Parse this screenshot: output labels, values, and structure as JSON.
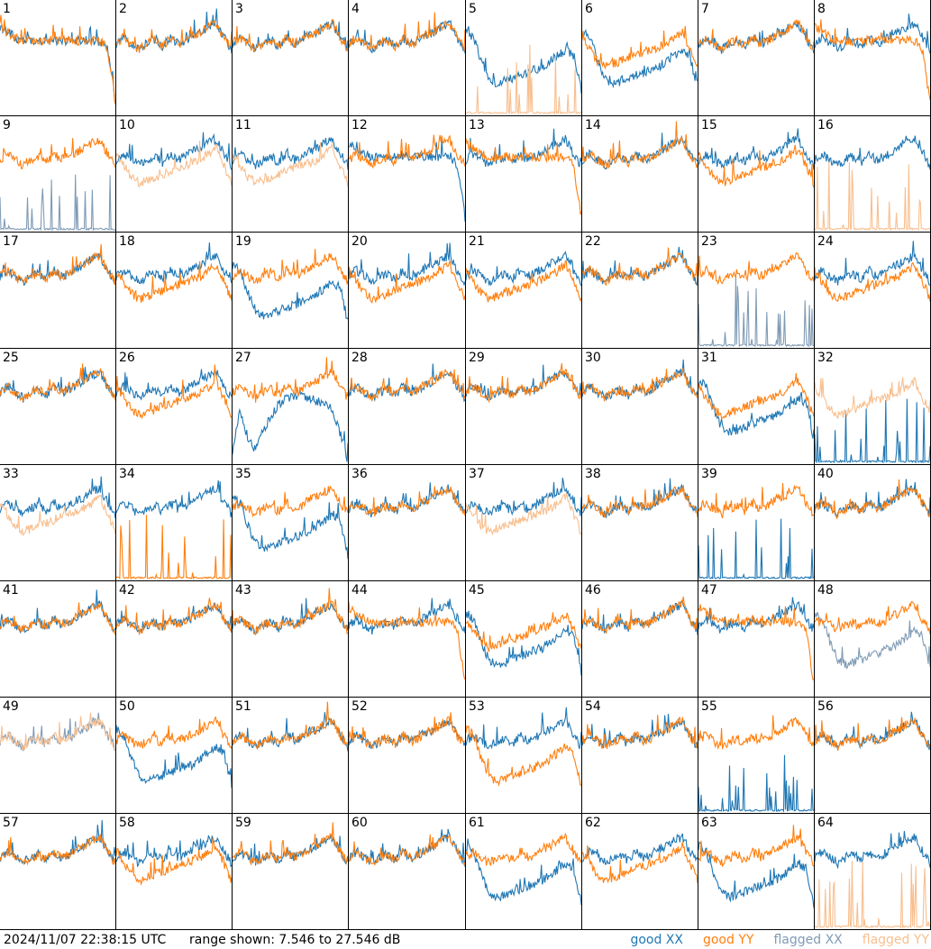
{
  "footer": {
    "timestamp": "2024/11/07 22:38:15 UTC",
    "range": "range shown: 7.546 to 27.546 dB"
  },
  "legend": [
    {
      "label": "good XX",
      "color": "#1f77b4"
    },
    {
      "label": "good YY",
      "color": "#ff7f0e"
    },
    {
      "label": "flagged XX",
      "color": "#7f9bb5"
    },
    {
      "label": "flagged YY",
      "color": "#f8bf8f"
    }
  ],
  "chart_data": {
    "type": "line",
    "grid_cols": 8,
    "grid_rows": 8,
    "ylim": [
      7.546,
      27.546
    ],
    "shapes": {
      "normal": [
        20,
        21,
        20,
        19,
        20,
        20.5,
        19.5,
        21,
        20,
        20.5,
        21.5,
        22,
        23,
        23.5,
        21,
        19
      ],
      "dip": [
        22,
        21,
        17,
        14,
        13,
        13.5,
        14,
        14.5,
        15,
        15.5,
        16,
        17,
        18,
        19,
        18,
        12
      ],
      "flat": [
        23,
        22,
        21,
        20.5,
        20.5,
        20.5,
        20.5,
        20.5,
        20.5,
        20.5,
        20.5,
        20.5,
        20.5,
        20.5,
        19,
        10
      ],
      "low": [
        21,
        19,
        17,
        16,
        16.5,
        17,
        17.5,
        18,
        18.5,
        19,
        19.5,
        20,
        21,
        22,
        19,
        16
      ],
      "spiky": [
        8,
        8,
        14,
        8,
        8,
        8,
        8,
        11,
        8,
        8,
        8,
        8,
        9,
        8,
        8,
        8
      ],
      "recovery": [
        10,
        17,
        12,
        10,
        13,
        16,
        18,
        19,
        19.5,
        19.5,
        19,
        18.5,
        18,
        17,
        13,
        7.8
      ]
    },
    "tiles": [
      {
        "id": "1",
        "xx": "flat",
        "yy": "flat",
        "xx_flagged": false,
        "yy_flagged": false
      },
      {
        "id": "2",
        "xx": "normal",
        "yy": "normal",
        "xx_flagged": false,
        "yy_flagged": false
      },
      {
        "id": "3",
        "xx": "normal",
        "yy": "normal",
        "xx_flagged": false,
        "yy_flagged": false
      },
      {
        "id": "4",
        "xx": "normal",
        "yy": "normal",
        "xx_flagged": false,
        "yy_flagged": false
      },
      {
        "id": "5",
        "xx": "dip",
        "yy": "spiky",
        "xx_flagged": false,
        "yy_flagged": true
      },
      {
        "id": "6",
        "xx": "dip",
        "yy": "low",
        "xx_flagged": false,
        "yy_flagged": false
      },
      {
        "id": "7",
        "xx": "normal",
        "yy": "normal",
        "xx_flagged": false,
        "yy_flagged": false
      },
      {
        "id": "8",
        "xx": "normal",
        "yy": "flat",
        "xx_flagged": false,
        "yy_flagged": false
      },
      {
        "id": "9",
        "xx": "spiky",
        "yy": "normal",
        "xx_flagged": true,
        "yy_flagged": false
      },
      {
        "id": "10",
        "xx": "normal",
        "yy": "low",
        "xx_flagged": false,
        "yy_flagged": true
      },
      {
        "id": "11",
        "xx": "normal",
        "yy": "low",
        "xx_flagged": false,
        "yy_flagged": true
      },
      {
        "id": "12",
        "xx": "flat",
        "yy": "normal",
        "xx_flagged": false,
        "yy_flagged": false
      },
      {
        "id": "13",
        "xx": "normal",
        "yy": "flat",
        "xx_flagged": false,
        "yy_flagged": false
      },
      {
        "id": "14",
        "xx": "normal",
        "yy": "normal",
        "xx_flagged": false,
        "yy_flagged": false
      },
      {
        "id": "15",
        "xx": "normal",
        "yy": "low",
        "xx_flagged": false,
        "yy_flagged": false
      },
      {
        "id": "16",
        "xx": "normal",
        "yy": "spiky",
        "xx_flagged": false,
        "yy_flagged": true
      },
      {
        "id": "17",
        "xx": "normal",
        "yy": "normal",
        "xx_flagged": false,
        "yy_flagged": false
      },
      {
        "id": "18",
        "xx": "normal",
        "yy": "low",
        "xx_flagged": false,
        "yy_flagged": false
      },
      {
        "id": "19",
        "xx": "dip",
        "yy": "normal",
        "xx_flagged": false,
        "yy_flagged": false
      },
      {
        "id": "20",
        "xx": "normal",
        "yy": "low",
        "xx_flagged": false,
        "yy_flagged": false
      },
      {
        "id": "21",
        "xx": "normal",
        "yy": "low",
        "xx_flagged": false,
        "yy_flagged": false
      },
      {
        "id": "22",
        "xx": "normal",
        "yy": "normal",
        "xx_flagged": false,
        "yy_flagged": false
      },
      {
        "id": "23",
        "xx": "spiky",
        "yy": "normal",
        "xx_flagged": true,
        "yy_flagged": false
      },
      {
        "id": "24",
        "xx": "normal",
        "yy": "low",
        "xx_flagged": false,
        "yy_flagged": false
      },
      {
        "id": "25",
        "xx": "normal",
        "yy": "normal",
        "xx_flagged": false,
        "yy_flagged": false
      },
      {
        "id": "26",
        "xx": "normal",
        "yy": "low",
        "xx_flagged": false,
        "yy_flagged": false
      },
      {
        "id": "27",
        "xx": "recovery",
        "yy": "normal",
        "xx_flagged": false,
        "yy_flagged": false
      },
      {
        "id": "28",
        "xx": "normal",
        "yy": "normal",
        "xx_flagged": false,
        "yy_flagged": false
      },
      {
        "id": "29",
        "xx": "normal",
        "yy": "normal",
        "xx_flagged": false,
        "yy_flagged": false
      },
      {
        "id": "30",
        "xx": "normal",
        "yy": "normal",
        "xx_flagged": false,
        "yy_flagged": false
      },
      {
        "id": "31",
        "xx": "dip",
        "yy": "low",
        "xx_flagged": false,
        "yy_flagged": false
      },
      {
        "id": "32",
        "xx": "spiky",
        "yy": "low",
        "xx_flagged": false,
        "yy_flagged": true
      },
      {
        "id": "33",
        "xx": "normal",
        "yy": "low",
        "xx_flagged": false,
        "yy_flagged": true
      },
      {
        "id": "34",
        "xx": "normal",
        "yy": "spiky",
        "xx_flagged": false,
        "yy_flagged": false
      },
      {
        "id": "35",
        "xx": "dip",
        "yy": "normal",
        "xx_flagged": false,
        "yy_flagged": false
      },
      {
        "id": "36",
        "xx": "normal",
        "yy": "normal",
        "xx_flagged": false,
        "yy_flagged": false
      },
      {
        "id": "37",
        "xx": "normal",
        "yy": "low",
        "xx_flagged": false,
        "yy_flagged": true
      },
      {
        "id": "38",
        "xx": "normal",
        "yy": "normal",
        "xx_flagged": false,
        "yy_flagged": false
      },
      {
        "id": "39",
        "xx": "spiky",
        "yy": "normal",
        "xx_flagged": false,
        "yy_flagged": false
      },
      {
        "id": "40",
        "xx": "normal",
        "yy": "normal",
        "xx_flagged": false,
        "yy_flagged": false
      },
      {
        "id": "41",
        "xx": "normal",
        "yy": "normal",
        "xx_flagged": false,
        "yy_flagged": false
      },
      {
        "id": "42",
        "xx": "normal",
        "yy": "normal",
        "xx_flagged": false,
        "yy_flagged": false
      },
      {
        "id": "43",
        "xx": "normal",
        "yy": "normal",
        "xx_flagged": false,
        "yy_flagged": false
      },
      {
        "id": "44",
        "xx": "normal",
        "yy": "flat",
        "xx_flagged": false,
        "yy_flagged": false
      },
      {
        "id": "45",
        "xx": "dip",
        "yy": "low",
        "xx_flagged": false,
        "yy_flagged": false
      },
      {
        "id": "46",
        "xx": "normal",
        "yy": "normal",
        "xx_flagged": false,
        "yy_flagged": false
      },
      {
        "id": "47",
        "xx": "normal",
        "yy": "flat",
        "xx_flagged": false,
        "yy_flagged": false
      },
      {
        "id": "48",
        "xx": "dip",
        "yy": "normal",
        "xx_flagged": true,
        "yy_flagged": false
      },
      {
        "id": "49",
        "xx": "normal",
        "yy": "normal",
        "xx_flagged": true,
        "yy_flagged": true
      },
      {
        "id": "50",
        "xx": "dip",
        "yy": "normal",
        "xx_flagged": false,
        "yy_flagged": false
      },
      {
        "id": "51",
        "xx": "normal",
        "yy": "normal",
        "xx_flagged": false,
        "yy_flagged": false
      },
      {
        "id": "52",
        "xx": "normal",
        "yy": "normal",
        "xx_flagged": false,
        "yy_flagged": false
      },
      {
        "id": "53",
        "xx": "normal",
        "yy": "dip",
        "xx_flagged": false,
        "yy_flagged": false
      },
      {
        "id": "54",
        "xx": "normal",
        "yy": "normal",
        "xx_flagged": false,
        "yy_flagged": false
      },
      {
        "id": "55",
        "xx": "spiky",
        "yy": "normal",
        "xx_flagged": false,
        "yy_flagged": false
      },
      {
        "id": "56",
        "xx": "normal",
        "yy": "normal",
        "xx_flagged": false,
        "yy_flagged": false
      },
      {
        "id": "57",
        "xx": "normal",
        "yy": "normal",
        "xx_flagged": false,
        "yy_flagged": false
      },
      {
        "id": "58",
        "xx": "normal",
        "yy": "low",
        "xx_flagged": false,
        "yy_flagged": false
      },
      {
        "id": "59",
        "xx": "normal",
        "yy": "normal",
        "xx_flagged": false,
        "yy_flagged": false
      },
      {
        "id": "60",
        "xx": "normal",
        "yy": "normal",
        "xx_flagged": false,
        "yy_flagged": false
      },
      {
        "id": "61",
        "xx": "dip",
        "yy": "normal",
        "xx_flagged": false,
        "yy_flagged": false
      },
      {
        "id": "62",
        "xx": "normal",
        "yy": "low",
        "xx_flagged": false,
        "yy_flagged": false
      },
      {
        "id": "63",
        "xx": "dip",
        "yy": "normal",
        "xx_flagged": false,
        "yy_flagged": false
      },
      {
        "id": "64",
        "xx": "normal",
        "yy": "spiky",
        "xx_flagged": false,
        "yy_flagged": true
      }
    ]
  }
}
